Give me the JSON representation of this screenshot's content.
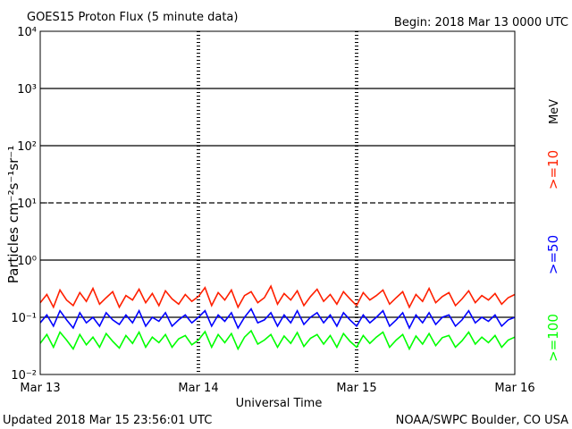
{
  "chart_data": {
    "type": "line",
    "title": "GOES15 Proton Flux (5 minute data)",
    "subtitle": "Begin: 2018 Mar 13 0000 UTC",
    "ylabel": "Particles cm⁻²s⁻¹sr⁻¹",
    "xlabel": "Universal Time",
    "footer_left": "Updated 2018 Mar 15 23:56:01 UTC",
    "footer_right": "NOAA/SWPC Boulder, CO USA",
    "legend_unit": "MeV",
    "legend": "right",
    "log_y": true,
    "grid": true,
    "threshold": 10,
    "xlim": [
      0,
      72
    ],
    "xticks": [
      {
        "value": 0,
        "label": "Mar 13"
      },
      {
        "value": 24,
        "label": "Mar 14"
      },
      {
        "value": 48,
        "label": "Mar 15"
      },
      {
        "value": 72,
        "label": "Mar 16"
      }
    ],
    "ylim": [
      0.01,
      10000
    ],
    "yticks": [
      {
        "value": 0.01,
        "label": "10⁻²"
      },
      {
        "value": 0.1,
        "label": "10⁻¹"
      },
      {
        "value": 1,
        "label": "10⁰"
      },
      {
        "value": 10,
        "label": "10¹"
      },
      {
        "value": 100,
        "label": "10²"
      },
      {
        "value": 1000,
        "label": "10³"
      },
      {
        "value": 10000,
        "label": "10⁴"
      }
    ],
    "x": [
      0,
      1,
      2,
      3,
      4,
      5,
      6,
      7,
      8,
      9,
      10,
      11,
      12,
      13,
      14,
      15,
      16,
      17,
      18,
      19,
      20,
      21,
      22,
      23,
      24,
      25,
      26,
      27,
      28,
      29,
      30,
      31,
      32,
      33,
      34,
      35,
      36,
      37,
      38,
      39,
      40,
      41,
      42,
      43,
      44,
      45,
      46,
      47,
      48,
      49,
      50,
      51,
      52,
      53,
      54,
      55,
      56,
      57,
      58,
      59,
      60,
      61,
      62,
      63,
      64,
      65,
      66,
      67,
      68,
      69,
      70,
      71,
      72
    ],
    "series": [
      {
        "name": ">=10",
        "color": "#ff2000",
        "values": [
          0.18,
          0.25,
          0.15,
          0.3,
          0.2,
          0.16,
          0.27,
          0.19,
          0.32,
          0.17,
          0.22,
          0.28,
          0.15,
          0.24,
          0.2,
          0.31,
          0.18,
          0.26,
          0.16,
          0.29,
          0.21,
          0.17,
          0.25,
          0.19,
          0.23,
          0.33,
          0.16,
          0.27,
          0.2,
          0.3,
          0.15,
          0.24,
          0.28,
          0.18,
          0.22,
          0.35,
          0.17,
          0.26,
          0.2,
          0.29,
          0.16,
          0.23,
          0.31,
          0.19,
          0.25,
          0.17,
          0.28,
          0.21,
          0.16,
          0.27,
          0.2,
          0.24,
          0.3,
          0.17,
          0.22,
          0.28,
          0.15,
          0.25,
          0.19,
          0.32,
          0.18,
          0.23,
          0.27,
          0.16,
          0.21,
          0.29,
          0.18,
          0.24,
          0.2,
          0.26,
          0.17,
          0.22,
          0.25
        ]
      },
      {
        "name": ">=50",
        "color": "#0000ff",
        "values": [
          0.08,
          0.11,
          0.07,
          0.13,
          0.09,
          0.065,
          0.12,
          0.08,
          0.1,
          0.07,
          0.12,
          0.09,
          0.075,
          0.11,
          0.08,
          0.13,
          0.07,
          0.1,
          0.085,
          0.12,
          0.07,
          0.09,
          0.11,
          0.08,
          0.1,
          0.13,
          0.07,
          0.11,
          0.085,
          0.12,
          0.065,
          0.1,
          0.14,
          0.08,
          0.09,
          0.12,
          0.07,
          0.11,
          0.08,
          0.13,
          0.075,
          0.1,
          0.12,
          0.08,
          0.11,
          0.07,
          0.12,
          0.09,
          0.07,
          0.11,
          0.08,
          0.1,
          0.13,
          0.07,
          0.09,
          0.12,
          0.065,
          0.11,
          0.08,
          0.12,
          0.075,
          0.1,
          0.11,
          0.07,
          0.09,
          0.13,
          0.08,
          0.1,
          0.085,
          0.11,
          0.07,
          0.09,
          0.1
        ]
      },
      {
        "name": ">=100",
        "color": "#00ff00",
        "values": [
          0.035,
          0.05,
          0.03,
          0.055,
          0.04,
          0.028,
          0.05,
          0.033,
          0.045,
          0.03,
          0.052,
          0.038,
          0.029,
          0.048,
          0.035,
          0.055,
          0.03,
          0.045,
          0.036,
          0.05,
          0.03,
          0.042,
          0.048,
          0.033,
          0.04,
          0.056,
          0.03,
          0.05,
          0.036,
          0.052,
          0.028,
          0.045,
          0.058,
          0.034,
          0.04,
          0.05,
          0.03,
          0.047,
          0.035,
          0.054,
          0.031,
          0.043,
          0.05,
          0.034,
          0.048,
          0.03,
          0.052,
          0.038,
          0.03,
          0.048,
          0.035,
          0.045,
          0.055,
          0.03,
          0.04,
          0.05,
          0.028,
          0.047,
          0.034,
          0.052,
          0.032,
          0.044,
          0.048,
          0.03,
          0.039,
          0.055,
          0.034,
          0.045,
          0.036,
          0.048,
          0.03,
          0.04,
          0.045
        ]
      }
    ]
  }
}
